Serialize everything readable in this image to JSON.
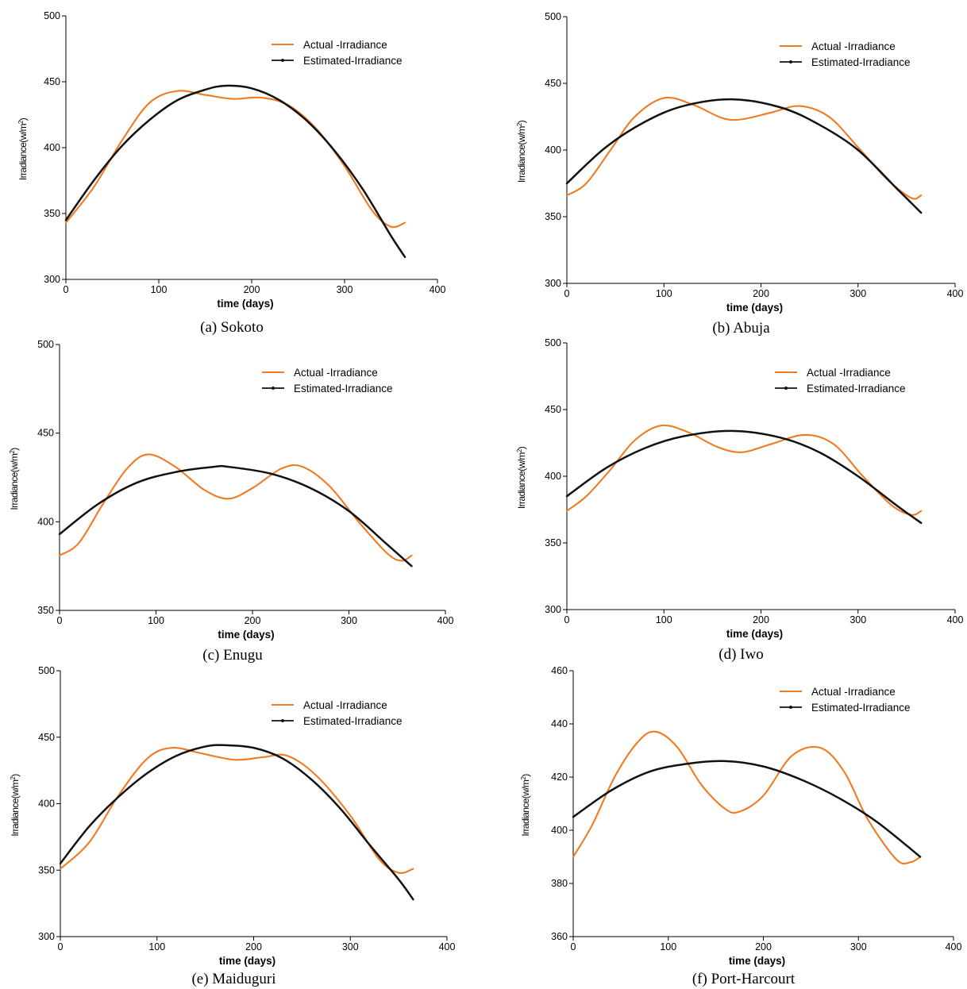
{
  "colors": {
    "actual": "#f07a22",
    "estimated": "#111111",
    "axis": "#000000"
  },
  "chart_data": [
    {
      "type": "line",
      "caption": "(a) Sokoto",
      "xlabel": "time (days)",
      "ylabel": "Irradiance(w/m2)",
      "xlim": [
        0,
        400
      ],
      "xticks": [
        0,
        100,
        200,
        300,
        400
      ],
      "ylim": [
        300,
        500
      ],
      "yticks": [
        300,
        350,
        400,
        450,
        500
      ],
      "legend_position": "top-right",
      "series": [
        {
          "name": "Actual -Irradiance",
          "x": [
            0,
            30,
            60,
            90,
            120,
            150,
            180,
            210,
            240,
            270,
            300,
            330,
            350,
            365
          ],
          "y": [
            343,
            370,
            405,
            434,
            443,
            440,
            437,
            438,
            432,
            414,
            386,
            352,
            340,
            343
          ]
        },
        {
          "name": "Estimated-Irradiance",
          "x": [
            0,
            30,
            60,
            90,
            120,
            150,
            172,
            200,
            230,
            260,
            290,
            320,
            350,
            365
          ],
          "y": [
            345,
            375,
            401,
            421,
            436,
            444,
            447,
            445,
            436,
            420,
            397,
            368,
            333,
            317
          ]
        }
      ]
    },
    {
      "type": "line",
      "caption": "(b) Abuja",
      "xlabel": "time (days)",
      "ylabel": "Irradiance(w/m2)",
      "xlim": [
        0,
        400
      ],
      "xticks": [
        0,
        100,
        200,
        300,
        400
      ],
      "ylim": [
        300,
        500
      ],
      "yticks": [
        300,
        350,
        400,
        450,
        500
      ],
      "legend_position": "top-right",
      "series": [
        {
          "name": "Actual -Irradiance",
          "x": [
            0,
            20,
            45,
            70,
            100,
            130,
            160,
            180,
            210,
            240,
            270,
            300,
            330,
            355,
            365
          ],
          "y": [
            366,
            375,
            400,
            425,
            439,
            434,
            424,
            423,
            428,
            433,
            425,
            402,
            378,
            364,
            366
          ]
        },
        {
          "name": "Estimated-Irradiance",
          "x": [
            0,
            40,
            80,
            120,
            170,
            220,
            260,
            300,
            340,
            365
          ],
          "y": [
            375,
            402,
            421,
            433,
            438,
            432,
            419,
            400,
            371,
            353
          ]
        }
      ]
    },
    {
      "type": "line",
      "caption": "(c) Enugu",
      "xlabel": "time (days)",
      "ylabel": "Irradiance(w/m2)",
      "xlim": [
        0,
        400
      ],
      "xticks": [
        0,
        100,
        200,
        300,
        400
      ],
      "ylim": [
        350,
        500
      ],
      "yticks": [
        350,
        400,
        450,
        500
      ],
      "legend_position": "top-right",
      "series": [
        {
          "name": "Actual -Irradiance",
          "x": [
            0,
            20,
            45,
            70,
            92,
            120,
            150,
            175,
            200,
            230,
            252,
            280,
            310,
            340,
            355,
            365
          ],
          "y": [
            381,
            388,
            410,
            430,
            438,
            431,
            418,
            413,
            419,
            430,
            431,
            420,
            400,
            382,
            378,
            381
          ]
        },
        {
          "name": "Estimated-Irradiance",
          "x": [
            0,
            40,
            80,
            120,
            160,
            175,
            220,
            260,
            300,
            340,
            365
          ],
          "y": [
            393,
            410,
            422,
            428,
            431,
            431,
            427,
            419,
            406,
            387,
            375
          ]
        }
      ]
    },
    {
      "type": "line",
      "caption": "(d) Iwo",
      "xlabel": "time (days)",
      "ylabel": "Irradiance(w/m2)",
      "xlim": [
        0,
        400
      ],
      "xticks": [
        0,
        100,
        200,
        300,
        400
      ],
      "ylim": [
        300,
        500
      ],
      "yticks": [
        300,
        350,
        400,
        450,
        500
      ],
      "legend_position": "top-right",
      "series": [
        {
          "name": "Actual -Irradiance",
          "x": [
            0,
            20,
            45,
            70,
            97,
            125,
            155,
            180,
            210,
            245,
            275,
            305,
            335,
            355,
            365
          ],
          "y": [
            374,
            385,
            405,
            427,
            438,
            433,
            422,
            418,
            424,
            431,
            424,
            400,
            378,
            371,
            374
          ]
        },
        {
          "name": "Estimated-Irradiance",
          "x": [
            0,
            40,
            80,
            120,
            170,
            220,
            260,
            300,
            340,
            365
          ],
          "y": [
            385,
            406,
            421,
            430,
            434,
            429,
            418,
            400,
            378,
            365
          ]
        }
      ]
    },
    {
      "type": "line",
      "caption": "(e) Maiduguri",
      "xlabel": "time (days)",
      "ylabel": "Irradiance(w/m2)",
      "xlim": [
        0,
        400
      ],
      "xticks": [
        0,
        100,
        200,
        300,
        400
      ],
      "ylim": [
        300,
        500
      ],
      "yticks": [
        300,
        350,
        400,
        450,
        500
      ],
      "legend_position": "top-right",
      "series": [
        {
          "name": "Actual -Irradiance",
          "x": [
            0,
            30,
            60,
            90,
            115,
            145,
            180,
            210,
            235,
            265,
            300,
            330,
            350,
            365
          ],
          "y": [
            351,
            371,
            406,
            434,
            442,
            438,
            433,
            435,
            436,
            421,
            391,
            358,
            348,
            351
          ]
        },
        {
          "name": "Estimated-Irradiance",
          "x": [
            0,
            30,
            60,
            90,
            120,
            150,
            170,
            200,
            230,
            260,
            290,
            320,
            350,
            365
          ],
          "y": [
            355,
            383,
            405,
            423,
            436,
            443,
            444,
            442,
            434,
            418,
            396,
            369,
            343,
            328
          ]
        }
      ]
    },
    {
      "type": "line",
      "caption": "(f) Port-Harcourt",
      "xlabel": "time (days)",
      "ylabel": "Irradiance(w/m2)",
      "xlim": [
        0,
        400
      ],
      "xticks": [
        0,
        100,
        200,
        300,
        400
      ],
      "ylim": [
        360,
        460
      ],
      "yticks": [
        360,
        380,
        400,
        420,
        440,
        460
      ],
      "legend_position": "top-right",
      "series": [
        {
          "name": "Actual -Irradiance",
          "x": [
            0,
            20,
            45,
            70,
            88,
            110,
            135,
            160,
            175,
            200,
            230,
            260,
            285,
            310,
            340,
            355,
            365
          ],
          "y": [
            390,
            402,
            421,
            434,
            437,
            431,
            417,
            408,
            407,
            413,
            428,
            431,
            422,
            404,
            389,
            388,
            390
          ]
        },
        {
          "name": "Estimated-Irradiance",
          "x": [
            0,
            40,
            80,
            120,
            160,
            200,
            240,
            280,
            320,
            365
          ],
          "y": [
            405,
            415,
            422,
            425,
            426,
            424,
            419,
            412,
            403,
            390
          ]
        }
      ]
    }
  ]
}
